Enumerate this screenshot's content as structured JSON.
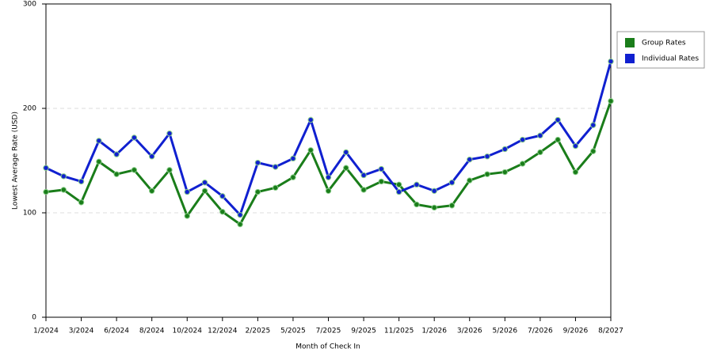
{
  "chart_data": {
    "type": "line",
    "x_label": "Month of Check In",
    "y_label": "Lowest Average Rate (USD)",
    "categories": [
      "1/2024",
      null,
      "3/2024",
      null,
      "6/2024",
      null,
      "8/2024",
      null,
      "10/2024",
      null,
      "12/2024",
      null,
      "2/2025",
      null,
      "5/2025",
      null,
      "7/2025",
      null,
      "9/2025",
      null,
      "11/2025",
      null,
      "1/2026",
      null,
      "3/2026",
      null,
      "5/2026",
      null,
      "7/2026",
      null,
      "9/2026",
      null,
      "8/2027"
    ],
    "series": [
      {
        "name": "Group Rates",
        "color": "#1a7d1a",
        "values": [
          120,
          122,
          110,
          149,
          137,
          141,
          121,
          141,
          97,
          121,
          101,
          89,
          120,
          124,
          134,
          160,
          121,
          143,
          122,
          130,
          127,
          108,
          105,
          107,
          131,
          137,
          139,
          147,
          158,
          170,
          139,
          159,
          207
        ]
      },
      {
        "name": "Individual Rates",
        "color": "#1020d0",
        "values": [
          143,
          135,
          130,
          169,
          156,
          172,
          154,
          176,
          120,
          129,
          116,
          98,
          148,
          144,
          152,
          189,
          134,
          158,
          136,
          142,
          120,
          127,
          121,
          129,
          151,
          154,
          161,
          170,
          174,
          189,
          164,
          184,
          245
        ]
      }
    ],
    "ylim": [
      0,
      300
    ],
    "yticks": [
      0,
      100,
      200,
      300
    ],
    "grid": true
  }
}
